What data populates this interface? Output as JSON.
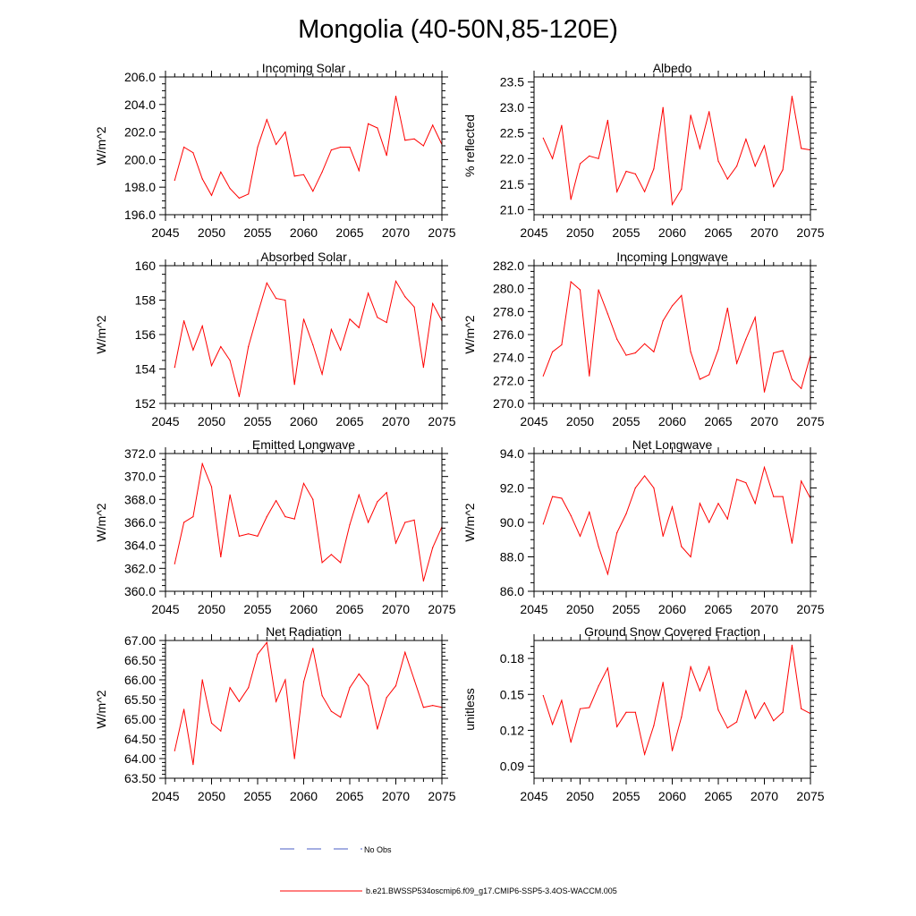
{
  "page": {
    "title": "Mongolia (40-50N,85-120E)"
  },
  "legend": {
    "obs_label": "No Obs",
    "obs_color": "#4a5cc4",
    "model_label": "b.e21.BWSSP534oscmip6.f09_g17.CMIP6-SSP5-3.4OS-WACCM.005",
    "model_color": "#ff0000"
  },
  "chart_data": [
    {
      "type": "line",
      "title": "Incoming Solar",
      "xlabel": "",
      "ylabel": "W/m^2",
      "xlim": [
        2045,
        2075
      ],
      "ylim": [
        196,
        206
      ],
      "x_ticks": [
        2045,
        2050,
        2055,
        2060,
        2065,
        2070,
        2075
      ],
      "x_tick_labels": [
        "2045",
        "2050",
        "2055",
        "2060",
        "2065",
        "2070",
        "2075"
      ],
      "y_ticks": [
        196,
        198,
        200,
        202,
        204,
        206
      ],
      "y_tick_labels": [
        "196.0",
        "198.0",
        "200.0",
        "202.0",
        "204.0",
        "206.0"
      ],
      "y_minor": [
        196.5,
        197,
        197.5,
        198.5,
        199,
        199.5,
        200.5,
        201,
        201.5,
        202.5,
        203,
        203.5,
        204.5,
        205,
        205.5
      ],
      "series": [
        {
          "name": "b.e21.BWSSP534oscmip6.f09_g17.CMIP6-SSP5-3.4OS-WACCM.005",
          "color": "#ff0000",
          "x": [
            2046,
            2047,
            2048,
            2049,
            2050,
            2051,
            2052,
            2053,
            2054,
            2055,
            2056,
            2057,
            2058,
            2059,
            2060,
            2061,
            2062,
            2063,
            2064,
            2065,
            2066,
            2067,
            2068,
            2069,
            2070,
            2071,
            2072,
            2073,
            2074,
            2075
          ],
          "values": [
            198.5,
            200.9,
            200.5,
            198.6,
            197.4,
            199.1,
            197.9,
            197.2,
            197.5,
            200.9,
            202.9,
            201.1,
            202.0,
            198.8,
            198.9,
            197.7,
            199.1,
            200.7,
            200.9,
            200.9,
            199.2,
            202.6,
            202.3,
            200.3,
            204.6,
            201.4,
            201.5,
            201.0,
            202.5,
            201.1
          ]
        }
      ]
    },
    {
      "type": "line",
      "title": "Albedo",
      "xlabel": "",
      "ylabel": "% reflected",
      "xlim": [
        2045,
        2075
      ],
      "ylim": [
        20.9,
        23.6
      ],
      "x_ticks": [
        2045,
        2050,
        2055,
        2060,
        2065,
        2070,
        2075
      ],
      "x_tick_labels": [
        "2045",
        "2050",
        "2055",
        "2060",
        "2065",
        "2070",
        "2075"
      ],
      "y_ticks": [
        21.0,
        21.5,
        22.0,
        22.5,
        23.0,
        23.5
      ],
      "y_tick_labels": [
        "21.0",
        "21.5",
        "22.0",
        "22.5",
        "23.0",
        "23.5"
      ],
      "y_minor": [
        21.1,
        21.2,
        21.3,
        21.4,
        21.6,
        21.7,
        21.8,
        21.9,
        22.1,
        22.2,
        22.3,
        22.4,
        22.6,
        22.7,
        22.8,
        22.9,
        23.1,
        23.2,
        23.3,
        23.4
      ],
      "series": [
        {
          "name": "b.e21.BWSSP534oscmip6.f09_g17.CMIP6-SSP5-3.4OS-WACCM.005",
          "color": "#ff0000",
          "x": [
            2046,
            2047,
            2048,
            2049,
            2050,
            2051,
            2052,
            2053,
            2054,
            2055,
            2056,
            2057,
            2058,
            2059,
            2060,
            2061,
            2062,
            2063,
            2064,
            2065,
            2066,
            2067,
            2068,
            2069,
            2070,
            2071,
            2072,
            2073,
            2074,
            2075
          ],
          "values": [
            22.4,
            22.0,
            22.65,
            21.2,
            21.9,
            22.05,
            22.0,
            22.75,
            21.35,
            21.75,
            21.7,
            21.35,
            21.8,
            23.0,
            21.1,
            21.4,
            22.85,
            22.2,
            22.92,
            21.95,
            21.6,
            21.85,
            22.38,
            21.85,
            22.25,
            21.45,
            21.78,
            23.22,
            22.2,
            22.17
          ]
        }
      ]
    },
    {
      "type": "line",
      "title": "Absorbed Solar",
      "xlabel": "",
      "ylabel": "W/m^2",
      "xlim": [
        2045,
        2075
      ],
      "ylim": [
        152,
        160
      ],
      "x_ticks": [
        2045,
        2050,
        2055,
        2060,
        2065,
        2070,
        2075
      ],
      "x_tick_labels": [
        "2045",
        "2050",
        "2055",
        "2060",
        "2065",
        "2070",
        "2075"
      ],
      "y_ticks": [
        152,
        154,
        156,
        158,
        160
      ],
      "y_tick_labels": [
        "152",
        "154",
        "156",
        "158",
        "160"
      ],
      "y_minor": [
        152.5,
        153,
        153.5,
        154.5,
        155,
        155.5,
        156.5,
        157,
        157.5,
        158.5,
        159,
        159.5
      ],
      "series": [
        {
          "name": "b.e21.BWSSP534oscmip6.f09_g17.CMIP6-SSP5-3.4OS-WACCM.005",
          "color": "#ff0000",
          "x": [
            2046,
            2047,
            2048,
            2049,
            2050,
            2051,
            2052,
            2053,
            2054,
            2055,
            2056,
            2057,
            2058,
            2059,
            2060,
            2061,
            2062,
            2063,
            2064,
            2065,
            2066,
            2067,
            2068,
            2069,
            2070,
            2071,
            2072,
            2073,
            2074,
            2075
          ],
          "values": [
            154.1,
            156.8,
            155.1,
            156.5,
            154.2,
            155.3,
            154.5,
            152.4,
            155.3,
            157.2,
            159.0,
            158.1,
            158.0,
            153.1,
            156.9,
            155.4,
            153.7,
            156.3,
            155.1,
            156.9,
            156.4,
            158.4,
            157.0,
            156.7,
            159.1,
            158.2,
            157.6,
            154.1,
            157.8,
            156.8
          ]
        }
      ]
    },
    {
      "type": "line",
      "title": "Incoming Longwave",
      "xlabel": "",
      "ylabel": "W/m^2",
      "xlim": [
        2045,
        2075
      ],
      "ylim": [
        270,
        282
      ],
      "x_ticks": [
        2045,
        2050,
        2055,
        2060,
        2065,
        2070,
        2075
      ],
      "x_tick_labels": [
        "2045",
        "2050",
        "2055",
        "2060",
        "2065",
        "2070",
        "2075"
      ],
      "y_ticks": [
        270,
        272,
        274,
        276,
        278,
        280,
        282
      ],
      "y_tick_labels": [
        "270.0",
        "272.0",
        "274.0",
        "276.0",
        "278.0",
        "280.0",
        "282.0"
      ],
      "y_minor": [
        270.5,
        271,
        271.5,
        272.5,
        273,
        273.5,
        274.5,
        275,
        275.5,
        276.5,
        277,
        277.5,
        278.5,
        279,
        279.5,
        280.5,
        281,
        281.5
      ],
      "series": [
        {
          "name": "b.e21.BWSSP534oscmip6.f09_g17.CMIP6-SSP5-3.4OS-WACCM.005",
          "color": "#ff0000",
          "x": [
            2046,
            2047,
            2048,
            2049,
            2050,
            2051,
            2052,
            2053,
            2054,
            2055,
            2056,
            2057,
            2058,
            2059,
            2060,
            2061,
            2062,
            2063,
            2064,
            2065,
            2066,
            2067,
            2068,
            2069,
            2070,
            2071,
            2072,
            2073,
            2074,
            2075
          ],
          "values": [
            272.4,
            274.5,
            275.1,
            280.6,
            279.9,
            272.4,
            279.9,
            277.8,
            275.6,
            274.2,
            274.4,
            275.2,
            274.5,
            277.2,
            278.5,
            279.4,
            274.5,
            272.1,
            272.5,
            274.7,
            278.3,
            273.5,
            275.6,
            277.5,
            271.0,
            274.4,
            274.6,
            272.1,
            271.3,
            274.2
          ]
        }
      ]
    },
    {
      "type": "line",
      "title": "Emitted Longwave",
      "xlabel": "",
      "ylabel": "W/m^2",
      "xlim": [
        2045,
        2075
      ],
      "ylim": [
        360,
        372
      ],
      "x_ticks": [
        2045,
        2050,
        2055,
        2060,
        2065,
        2070,
        2075
      ],
      "x_tick_labels": [
        "2045",
        "2050",
        "2055",
        "2060",
        "2065",
        "2070",
        "2075"
      ],
      "y_ticks": [
        360,
        362,
        364,
        366,
        368,
        370,
        372
      ],
      "y_tick_labels": [
        "360.0",
        "362.0",
        "364.0",
        "366.0",
        "368.0",
        "370.0",
        "372.0"
      ],
      "y_minor": [
        360.5,
        361,
        361.5,
        362.5,
        363,
        363.5,
        364.5,
        365,
        365.5,
        366.5,
        367,
        367.5,
        368.5,
        369,
        369.5,
        370.5,
        371,
        371.5
      ],
      "series": [
        {
          "name": "b.e21.BWSSP534oscmip6.f09_g17.CMIP6-SSP5-3.4OS-WACCM.005",
          "color": "#ff0000",
          "x": [
            2046,
            2047,
            2048,
            2049,
            2050,
            2051,
            2052,
            2053,
            2054,
            2055,
            2056,
            2057,
            2058,
            2059,
            2060,
            2061,
            2062,
            2063,
            2064,
            2065,
            2066,
            2067,
            2068,
            2069,
            2070,
            2071,
            2072,
            2073,
            2074,
            2075
          ],
          "values": [
            362.4,
            366.0,
            366.5,
            371.1,
            369.1,
            363.0,
            368.4,
            364.8,
            365.0,
            364.8,
            366.5,
            367.9,
            366.5,
            366.3,
            369.4,
            368.0,
            362.5,
            363.2,
            362.5,
            365.8,
            368.4,
            366.0,
            367.8,
            368.6,
            364.2,
            366.0,
            366.2,
            360.9,
            363.8,
            365.6
          ]
        }
      ]
    },
    {
      "type": "line",
      "title": "Net Longwave",
      "xlabel": "",
      "ylabel": "W/m^2",
      "xlim": [
        2045,
        2075
      ],
      "ylim": [
        86,
        94
      ],
      "x_ticks": [
        2045,
        2050,
        2055,
        2060,
        2065,
        2070,
        2075
      ],
      "x_tick_labels": [
        "2045",
        "2050",
        "2055",
        "2060",
        "2065",
        "2070",
        "2075"
      ],
      "y_ticks": [
        86,
        88,
        90,
        92,
        94
      ],
      "y_tick_labels": [
        "86.0",
        "88.0",
        "90.0",
        "92.0",
        "94.0"
      ],
      "y_minor": [
        86.5,
        87,
        87.5,
        88.5,
        89,
        89.5,
        90.5,
        91,
        91.5,
        92.5,
        93,
        93.5
      ],
      "series": [
        {
          "name": "b.e21.BWSSP534oscmip6.f09_g17.CMIP6-SSP5-3.4OS-WACCM.005",
          "color": "#ff0000",
          "x": [
            2046,
            2047,
            2048,
            2049,
            2050,
            2051,
            2052,
            2053,
            2054,
            2055,
            2056,
            2057,
            2058,
            2059,
            2060,
            2061,
            2062,
            2063,
            2064,
            2065,
            2066,
            2067,
            2068,
            2069,
            2070,
            2071,
            2072,
            2073,
            2074,
            2075
          ],
          "values": [
            89.9,
            91.5,
            91.4,
            90.4,
            89.2,
            90.6,
            88.6,
            87.0,
            89.4,
            90.5,
            92.0,
            92.7,
            92.0,
            89.2,
            90.9,
            88.6,
            88.0,
            91.1,
            90.0,
            91.1,
            90.2,
            92.5,
            92.3,
            91.1,
            93.2,
            91.5,
            91.5,
            88.8,
            92.4,
            91.4
          ]
        }
      ]
    },
    {
      "type": "line",
      "title": "Net Radiation",
      "xlabel": "",
      "ylabel": "W/m^2",
      "xlim": [
        2045,
        2075
      ],
      "ylim": [
        63.5,
        67.0
      ],
      "x_ticks": [
        2045,
        2050,
        2055,
        2060,
        2065,
        2070,
        2075
      ],
      "x_tick_labels": [
        "2045",
        "2050",
        "2055",
        "2060",
        "2065",
        "2070",
        "2075"
      ],
      "y_ticks": [
        63.5,
        64.0,
        64.5,
        65.0,
        65.5,
        66.0,
        66.5,
        67.0
      ],
      "y_tick_labels": [
        "63.50",
        "64.00",
        "64.50",
        "65.00",
        "65.50",
        "66.00",
        "66.50",
        "67.00"
      ],
      "y_minor": [
        63.6,
        63.7,
        63.8,
        63.9,
        64.1,
        64.2,
        64.3,
        64.4,
        64.6,
        64.7,
        64.8,
        64.9,
        65.1,
        65.2,
        65.3,
        65.4,
        65.6,
        65.7,
        65.8,
        65.9,
        66.1,
        66.2,
        66.3,
        66.4,
        66.6,
        66.7,
        66.8,
        66.9
      ],
      "series": [
        {
          "name": "b.e21.BWSSP534oscmip6.f09_g17.CMIP6-SSP5-3.4OS-WACCM.005",
          "color": "#ff0000",
          "x": [
            2046,
            2047,
            2048,
            2049,
            2050,
            2051,
            2052,
            2053,
            2054,
            2055,
            2056,
            2057,
            2058,
            2059,
            2060,
            2061,
            2062,
            2063,
            2064,
            2065,
            2066,
            2067,
            2068,
            2069,
            2070,
            2071,
            2072,
            2073,
            2074,
            2075
          ],
          "values": [
            64.2,
            65.25,
            63.85,
            66.0,
            64.9,
            64.7,
            65.8,
            65.45,
            65.8,
            66.65,
            66.95,
            65.45,
            66.0,
            64.0,
            65.95,
            66.8,
            65.6,
            65.2,
            65.05,
            65.8,
            66.15,
            65.85,
            64.75,
            65.55,
            65.85,
            66.7,
            66.0,
            65.3,
            65.35,
            65.3
          ]
        }
      ]
    },
    {
      "type": "line",
      "title": "Ground Snow Covered Fraction",
      "xlabel": "",
      "ylabel": "unitless",
      "xlim": [
        2045,
        2075
      ],
      "ylim": [
        0.08,
        0.195
      ],
      "x_ticks": [
        2045,
        2050,
        2055,
        2060,
        2065,
        2070,
        2075
      ],
      "x_tick_labels": [
        "2045",
        "2050",
        "2055",
        "2060",
        "2065",
        "2070",
        "2075"
      ],
      "y_ticks": [
        0.09,
        0.12,
        0.15,
        0.18
      ],
      "y_tick_labels": [
        "0.09",
        "0.12",
        "0.15",
        "0.18"
      ],
      "y_minor": [
        0.085,
        0.095,
        0.1,
        0.105,
        0.11,
        0.115,
        0.125,
        0.13,
        0.135,
        0.14,
        0.145,
        0.155,
        0.16,
        0.165,
        0.17,
        0.175,
        0.185,
        0.19
      ],
      "series": [
        {
          "name": "b.e21.BWSSP534oscmip6.f09_g17.CMIP6-SSP5-3.4OS-WACCM.005",
          "color": "#ff0000",
          "x": [
            2046,
            2047,
            2048,
            2049,
            2050,
            2051,
            2052,
            2053,
            2054,
            2055,
            2056,
            2057,
            2058,
            2059,
            2060,
            2061,
            2062,
            2063,
            2064,
            2065,
            2066,
            2067,
            2068,
            2069,
            2070,
            2071,
            2072,
            2073,
            2074,
            2075
          ],
          "values": [
            0.149,
            0.125,
            0.145,
            0.11,
            0.138,
            0.139,
            0.157,
            0.172,
            0.123,
            0.135,
            0.135,
            0.1,
            0.124,
            0.16,
            0.103,
            0.131,
            0.173,
            0.153,
            0.173,
            0.137,
            0.122,
            0.127,
            0.153,
            0.13,
            0.143,
            0.128,
            0.135,
            0.191,
            0.138,
            0.134
          ]
        }
      ]
    }
  ]
}
